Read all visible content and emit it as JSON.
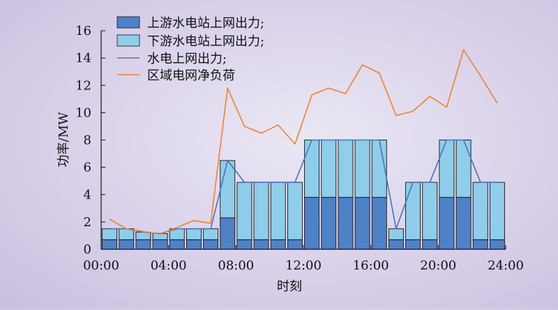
{
  "chart_data": {
    "type": "bar",
    "title": "",
    "xlabel": "时刻",
    "ylabel": "功率/MW",
    "ylim": [
      0,
      16
    ],
    "yticks": [
      "0",
      "2",
      "4",
      "6",
      "8",
      "10",
      "12",
      "14",
      "16"
    ],
    "xlim": [
      0,
      24
    ],
    "xticks": [
      "00:00",
      "04:00",
      "08:00",
      "12:00",
      "16:00",
      "20:00",
      "24:00"
    ],
    "grid": false,
    "legend_position": "top-left",
    "x": [
      1,
      2,
      3,
      4,
      5,
      6,
      7,
      8,
      9,
      10,
      11,
      12,
      13,
      14,
      15,
      16,
      17,
      18,
      19,
      20,
      21,
      22,
      23,
      24
    ],
    "series": [
      {
        "name": "上游水电站上网出力;",
        "kind": "stacked-bar",
        "color": "#4f81c7",
        "values": [
          0.7,
          0.7,
          0.7,
          0.7,
          0.7,
          0.7,
          0.7,
          2.3,
          0.7,
          0.7,
          0.7,
          0.7,
          3.8,
          3.8,
          3.8,
          3.8,
          3.8,
          0.7,
          0.7,
          0.7,
          3.8,
          3.8,
          0.7,
          0.7
        ]
      },
      {
        "name": "下游水电站上网出力;",
        "kind": "stacked-bar",
        "color": "#8fcdea",
        "values": [
          0.8,
          0.8,
          0.55,
          0.45,
          0.8,
          0.8,
          0.8,
          4.2,
          4.2,
          4.2,
          4.2,
          4.2,
          4.2,
          4.2,
          4.2,
          4.2,
          4.2,
          0.8,
          4.2,
          4.2,
          4.2,
          4.2,
          4.2,
          4.2
        ]
      },
      {
        "name": "水电上网出力;",
        "kind": "line",
        "color": "#4a72b8",
        "values": [
          1.5,
          1.5,
          1.25,
          1.15,
          1.5,
          1.5,
          1.5,
          6.5,
          4.9,
          4.9,
          4.9,
          4.9,
          8.0,
          8.0,
          8.0,
          8.0,
          8.0,
          1.5,
          4.9,
          4.9,
          8.0,
          8.0,
          4.9,
          4.9
        ]
      },
      {
        "name": "区域电网净负荷",
        "kind": "line",
        "color": "#f08030",
        "values": [
          2.2,
          1.5,
          1.3,
          1.1,
          1.6,
          2.1,
          1.9,
          11.8,
          9.0,
          8.5,
          9.1,
          7.7,
          11.3,
          11.8,
          11.4,
          13.5,
          12.9,
          9.8,
          10.1,
          11.2,
          10.4,
          14.6,
          12.7,
          10.7
        ]
      }
    ]
  }
}
